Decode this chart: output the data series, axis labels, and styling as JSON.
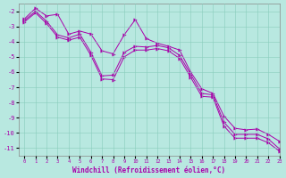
{
  "xlabel": "Windchill (Refroidissement éolien,°C)",
  "background_color": "#b8e8e0",
  "grid_color": "#88ccbb",
  "line_color": "#aa00aa",
  "xlim": [
    -0.5,
    23
  ],
  "ylim": [
    -11.5,
    -1.5
  ],
  "yticks": [
    -2,
    -3,
    -4,
    -5,
    -6,
    -7,
    -8,
    -9,
    -10,
    -11
  ],
  "xticks": [
    0,
    1,
    2,
    3,
    4,
    5,
    6,
    7,
    8,
    9,
    10,
    11,
    12,
    13,
    14,
    15,
    16,
    17,
    18,
    19,
    20,
    21,
    22,
    23
  ],
  "y_upper": [
    -2.5,
    -1.8,
    -2.3,
    -2.2,
    -3.5,
    -3.3,
    -3.5,
    -4.6,
    -4.8,
    -3.55,
    -2.55,
    -3.8,
    -4.1,
    -4.3,
    -4.55,
    -6.0,
    -7.1,
    -7.4,
    -8.9,
    -9.7,
    -9.8,
    -9.75,
    -10.1,
    -10.55
  ],
  "y_mid": [
    -2.6,
    -2.0,
    -2.65,
    -3.55,
    -3.75,
    -3.5,
    -4.7,
    -6.25,
    -6.2,
    -4.7,
    -4.3,
    -4.35,
    -4.25,
    -4.4,
    -4.9,
    -6.15,
    -7.4,
    -7.5,
    -9.3,
    -10.1,
    -10.1,
    -10.1,
    -10.4,
    -11.05
  ],
  "y_lower": [
    -2.7,
    -2.1,
    -2.8,
    -3.7,
    -3.9,
    -3.7,
    -4.9,
    -6.45,
    -6.5,
    -5.0,
    -4.55,
    -4.55,
    -4.45,
    -4.6,
    -5.1,
    -6.35,
    -7.6,
    -7.65,
    -9.55,
    -10.35,
    -10.35,
    -10.35,
    -10.65,
    -11.2
  ]
}
